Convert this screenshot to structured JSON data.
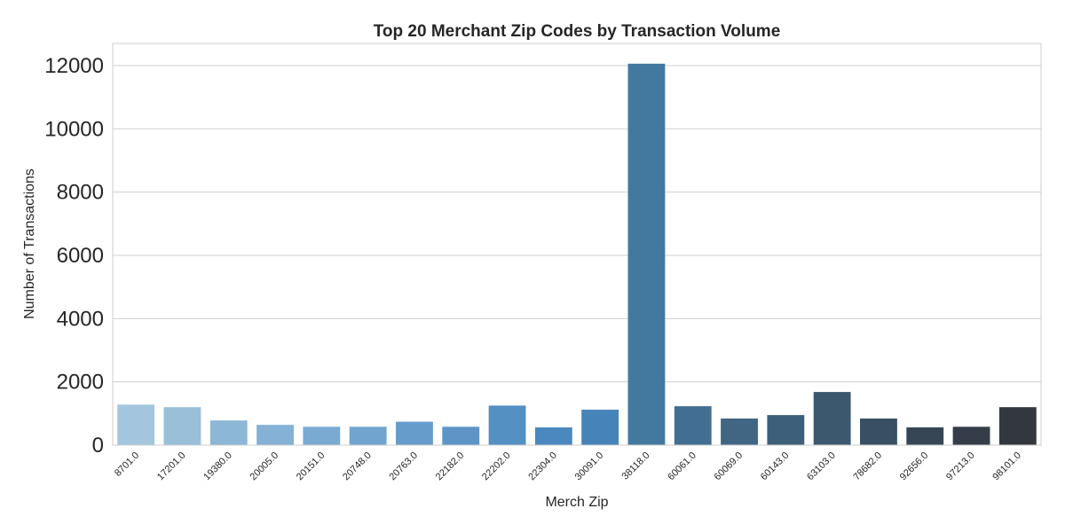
{
  "chart_data": {
    "type": "bar",
    "title": "Top 20 Merchant Zip Codes by Transaction Volume",
    "xlabel": "Merch Zip",
    "ylabel": "Number of Transactions",
    "ylim": [
      0,
      12700
    ],
    "yticks": [
      0,
      2000,
      4000,
      6000,
      8000,
      10000,
      12000
    ],
    "grid": true,
    "categories": [
      "8701.0",
      "17201.0",
      "19380.0",
      "20005.0",
      "20151.0",
      "20748.0",
      "20763.0",
      "22182.0",
      "22202.0",
      "22304.0",
      "30091.0",
      "38118.0",
      "60061.0",
      "60069.0",
      "60143.0",
      "63103.0",
      "78682.0",
      "92656.0",
      "97213.0",
      "98101.0"
    ],
    "values": [
      1280,
      1200,
      780,
      640,
      580,
      580,
      740,
      580,
      1250,
      560,
      1120,
      12060,
      1230,
      840,
      950,
      1680,
      840,
      560,
      580,
      1200
    ],
    "colors": [
      "#a3c6de",
      "#99bfd9",
      "#8cb7d6",
      "#84b1d5",
      "#7aaad2",
      "#71a4cf",
      "#669ccb",
      "#5d95c7",
      "#5590c3",
      "#4a88bf",
      "#4683b8",
      "#43799f",
      "#426f91",
      "#406683",
      "#3e5f79",
      "#3b586f",
      "#394f62",
      "#364655",
      "#343d48",
      "#33383e"
    ]
  }
}
